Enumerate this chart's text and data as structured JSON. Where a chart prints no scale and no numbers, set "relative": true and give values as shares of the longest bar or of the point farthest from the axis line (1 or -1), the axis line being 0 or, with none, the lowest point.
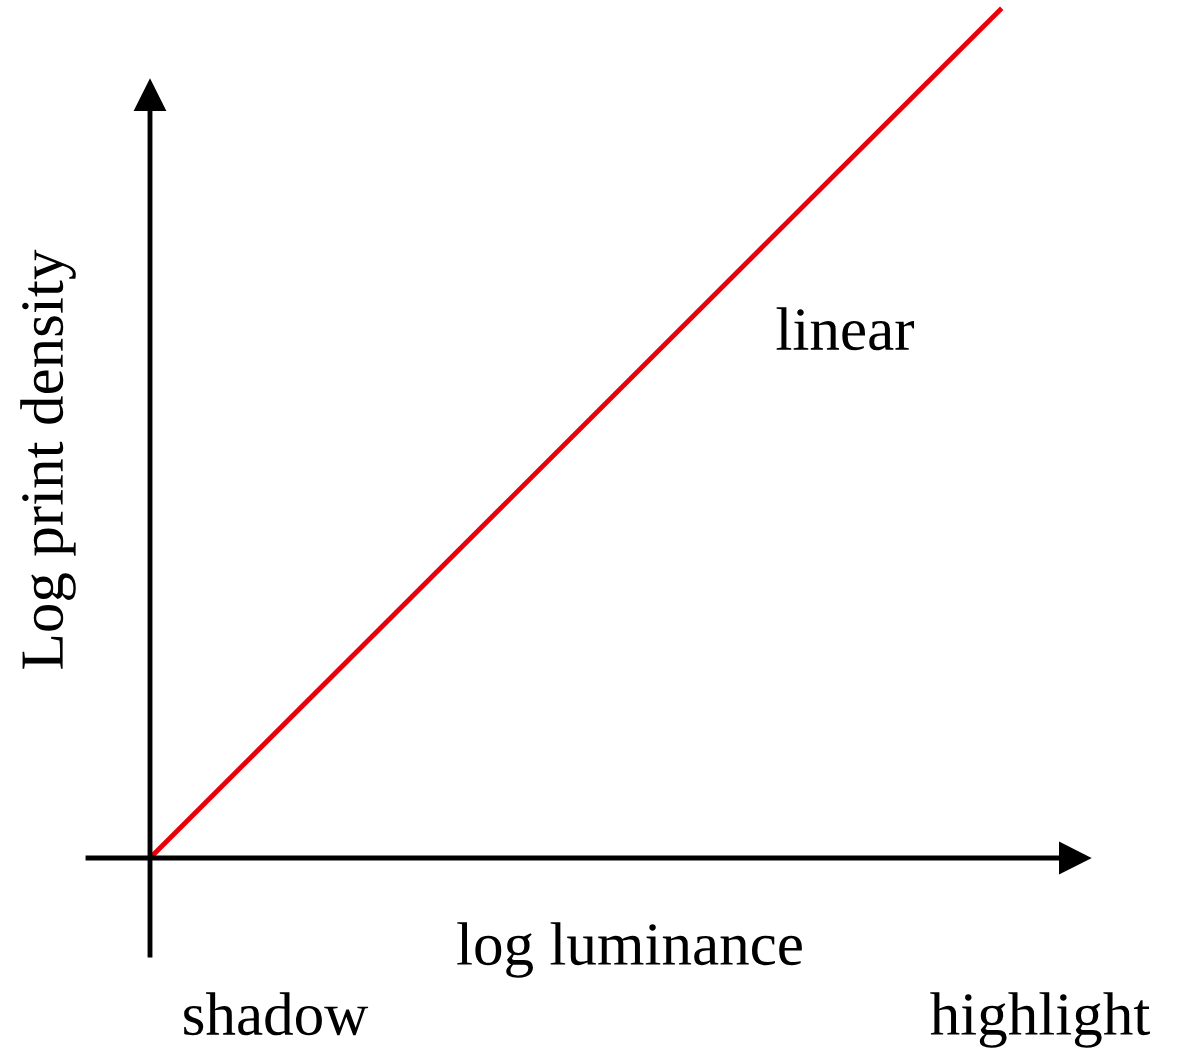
{
  "chart_data": {
    "type": "line",
    "relative": true,
    "xlabel": "log luminance",
    "ylabel": "Log print density",
    "categories": [
      null,
      null
    ],
    "series": [
      {
        "name": "linear",
        "color": "#e8000b",
        "values": [
          0,
          1
        ]
      }
    ],
    "annotations": [
      "shadow",
      "highlight"
    ],
    "ref_lines": [
      {
        "axis": "y",
        "value": 0,
        "color": "#000000"
      }
    ],
    "grid": false,
    "marker": "none",
    "line_style": "solid"
  }
}
